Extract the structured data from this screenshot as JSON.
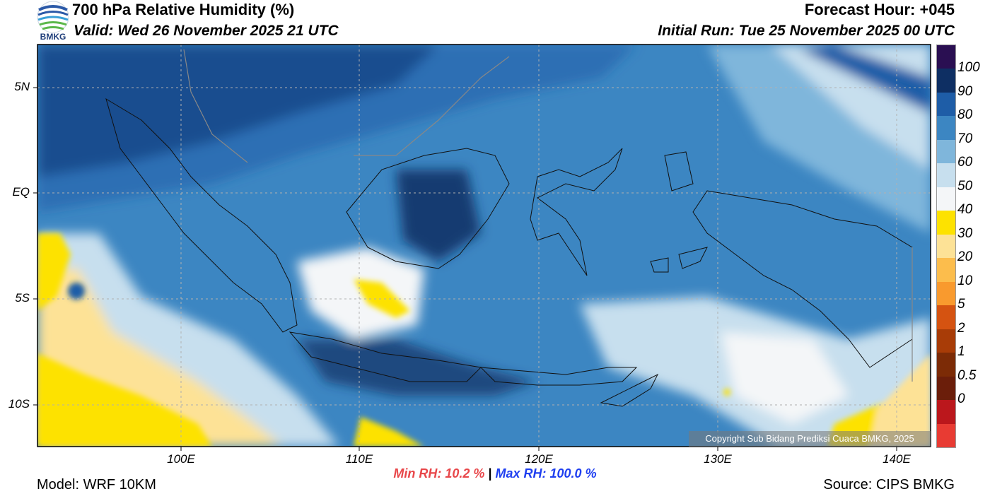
{
  "header": {
    "title": "700 hPa Relative Humidity (%)",
    "valid": "Valid: Wed 26 November 2025 21 UTC",
    "forecast_hour": "Forecast Hour: +045",
    "initial_run": "Initial Run: Tue 25 November 2025 00 UTC",
    "logo_text": "BMKG"
  },
  "map": {
    "lat_labels": [
      "5N",
      "EQ",
      "5S",
      "10S"
    ],
    "lon_labels": [
      "100E",
      "110E",
      "120E",
      "130E",
      "140E"
    ],
    "copyright": "Copyright Sub Bidang Prediksi Cuaca BMKG, 2025"
  },
  "colorbar": {
    "labels": [
      "100",
      "90",
      "80",
      "70",
      "60",
      "50",
      "40",
      "30",
      "20",
      "10",
      "5",
      "2",
      "1",
      "0.5",
      "0"
    ],
    "colors": [
      "#2a0f52",
      "#0e2f63",
      "#1e5da7",
      "#3c86c2",
      "#7fb6db",
      "#c7dfee",
      "#f4f6f8",
      "#fde200",
      "#fde296",
      "#fcbd4c",
      "#f99a2e",
      "#d55311",
      "#a83c07",
      "#7c2b06",
      "#6b1e0a",
      "#bb171c",
      "#e83b33"
    ]
  },
  "stats": {
    "min_rh": "Min RH:  10.2 %",
    "max_rh": "Max RH: 100.0 %",
    "separator": "|"
  },
  "footer": {
    "model": "Model: WRF 10KM",
    "source": "Source: CIPS BMKG"
  }
}
